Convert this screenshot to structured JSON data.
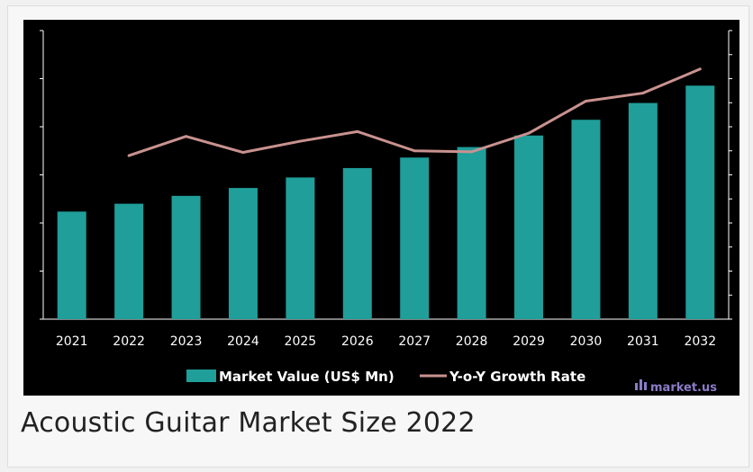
{
  "caption": "Acoustic Guitar Market Size 2022",
  "watermark": {
    "text": "market.us",
    "color": "#8b7cc8"
  },
  "colors": {
    "bar": "#1f9e9a",
    "line": "#c9928f",
    "background": "#000000",
    "axis": "#ffffff"
  },
  "chart_data": {
    "type": "bar",
    "categories": [
      "2021",
      "2022",
      "2023",
      "2024",
      "2025",
      "2026",
      "2027",
      "2028",
      "2029",
      "2030",
      "2031",
      "2032"
    ],
    "series": [
      {
        "name": "Market Value (US$ Mn)",
        "type": "bar",
        "axis": "left",
        "values": [
          2.05,
          2.2,
          2.35,
          2.5,
          2.7,
          2.88,
          3.08,
          3.28,
          3.5,
          3.8,
          4.12,
          4.45
        ]
      },
      {
        "name": "Y-o-Y Growth Rate",
        "type": "line",
        "axis": "right",
        "values": [
          null,
          5.1,
          5.7,
          5.2,
          5.55,
          5.85,
          5.25,
          5.22,
          5.8,
          6.8,
          7.05,
          7.8
        ]
      }
    ],
    "left_ylim": [
      0,
      5.5
    ],
    "right_ylim": [
      0,
      9
    ],
    "legend_position": "bottom",
    "grid": false,
    "title": "",
    "xlabel": "",
    "ylabel": ""
  }
}
